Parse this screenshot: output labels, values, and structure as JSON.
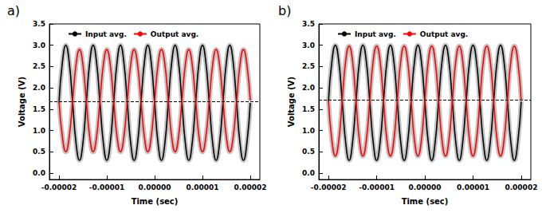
{
  "chart_data": [
    {
      "type": "line",
      "title": "a)",
      "x_label": "Time (sec)",
      "y_label": "Voltage (V)",
      "legend": "top",
      "grid": false,
      "reference_line": 1.68,
      "xlim": [
        -2.2e-05,
        2.2e-05
      ],
      "xticks": [
        -2e-05,
        -1e-05,
        {
          "value": 0,
          "label": "0.00000"
        },
        1e-05,
        2e-05
      ],
      "ylim": [
        -0.15,
        3.5
      ],
      "yticks": [
        {
          "value": 0,
          "label": "0.0"
        },
        0.5,
        {
          "value": 1,
          "label": "1.0"
        },
        1.5,
        {
          "value": 2,
          "label": "2.0"
        },
        2.5,
        {
          "value": 3,
          "label": "3.0"
        },
        3.5
      ],
      "x": [
        -2e-05,
        -1.9286e-05,
        -1.8571e-05,
        -1.7857e-05,
        -1.7143e-05,
        -1.6429e-05,
        -1.5714e-05,
        -1.5e-05,
        -1.4286e-05,
        -1.3571e-05,
        -1.2857e-05,
        -1.2143e-05,
        -1.1429e-05,
        -1.0714e-05,
        -1e-05,
        -9.286e-06,
        -8.571e-06,
        -7.857e-06,
        -7.143e-06,
        -6.429e-06,
        -5.714e-06,
        -5e-06,
        -4.286e-06,
        -3.571e-06,
        -2.857e-06,
        -2.143e-06,
        -1.429e-06,
        -7.14e-07,
        0,
        7.14e-07,
        1.429e-06,
        2.143e-06,
        2.857e-06,
        3.571e-06,
        4.286e-06,
        5e-06,
        5.714e-06,
        6.429e-06,
        7.143e-06,
        7.857e-06,
        8.571e-06,
        9.286e-06,
        1e-05,
        1.0714e-05,
        1.1429e-05,
        1.2143e-05,
        1.2857e-05,
        1.3571e-05,
        1.4286e-05,
        1.5e-05,
        1.5714e-05,
        1.6429e-05,
        1.7143e-05,
        1.7857e-05,
        1.8571e-05,
        1.9286e-05,
        2e-05
      ],
      "series": [
        {
          "name": "Input avg.",
          "color": "#000000",
          "values": [
            1.65,
            2.6,
            3.0,
            2.6,
            1.65,
            0.7,
            0.3,
            0.7,
            1.65,
            2.6,
            3.0,
            2.6,
            1.65,
            0.7,
            0.3,
            0.7,
            1.65,
            2.6,
            3.0,
            2.6,
            1.65,
            0.7,
            0.3,
            0.7,
            1.65,
            2.6,
            3.0,
            2.6,
            1.65,
            0.7,
            0.3,
            0.7,
            1.65,
            2.6,
            3.0,
            2.6,
            1.65,
            0.7,
            0.3,
            0.7,
            1.65,
            2.6,
            3.0,
            2.6,
            1.65,
            0.7,
            0.3,
            0.7,
            1.65,
            2.6,
            3.0,
            2.6,
            1.65,
            0.7,
            0.3,
            0.7,
            1.65
          ]
        },
        {
          "name": "Output avg.",
          "color": "#ff0000",
          "values": [
            1.7,
            0.85,
            0.5,
            0.85,
            1.7,
            2.55,
            2.9,
            2.55,
            1.7,
            0.85,
            0.5,
            0.85,
            1.7,
            2.55,
            2.9,
            2.55,
            1.7,
            0.85,
            0.5,
            0.85,
            1.7,
            2.55,
            2.9,
            2.55,
            1.7,
            0.85,
            0.5,
            0.85,
            1.7,
            2.55,
            2.9,
            2.55,
            1.7,
            0.85,
            0.5,
            0.85,
            1.7,
            2.55,
            2.9,
            2.55,
            1.7,
            0.85,
            0.5,
            0.85,
            1.7,
            2.55,
            2.9,
            2.55,
            1.7,
            0.85,
            0.5,
            0.85,
            1.7,
            2.55,
            2.9,
            2.55,
            1.7
          ]
        }
      ]
    },
    {
      "type": "line",
      "title": "b)",
      "x_label": "Time (sec)",
      "y_label": "Voltage (V)",
      "legend": "top",
      "grid": false,
      "reference_line": 1.72,
      "xlim": [
        -2.2e-05,
        2.2e-05
      ],
      "xticks": [
        -2e-05,
        -1e-05,
        {
          "value": 0,
          "label": "0.00000"
        },
        1e-05,
        2e-05
      ],
      "ylim": [
        -0.15,
        3.5
      ],
      "yticks": [
        {
          "value": 0,
          "label": "0.0"
        },
        0.5,
        {
          "value": 1,
          "label": "1.0"
        },
        1.5,
        {
          "value": 2,
          "label": "2.0"
        },
        2.5,
        {
          "value": 3,
          "label": "3.0"
        },
        3.5
      ],
      "x": [
        -2e-05,
        -1.9286e-05,
        -1.8571e-05,
        -1.7857e-05,
        -1.7143e-05,
        -1.6429e-05,
        -1.5714e-05,
        -1.5e-05,
        -1.4286e-05,
        -1.3571e-05,
        -1.2857e-05,
        -1.2143e-05,
        -1.1429e-05,
        -1.0714e-05,
        -1e-05,
        -9.286e-06,
        -8.571e-06,
        -7.857e-06,
        -7.143e-06,
        -6.429e-06,
        -5.714e-06,
        -5e-06,
        -4.286e-06,
        -3.571e-06,
        -2.857e-06,
        -2.143e-06,
        -1.429e-06,
        -7.14e-07,
        0,
        7.14e-07,
        1.429e-06,
        2.143e-06,
        2.857e-06,
        3.571e-06,
        4.286e-06,
        5e-06,
        5.714e-06,
        6.429e-06,
        7.143e-06,
        7.857e-06,
        8.571e-06,
        9.286e-06,
        1e-05,
        1.0714e-05,
        1.1429e-05,
        1.2143e-05,
        1.2857e-05,
        1.3571e-05,
        1.4286e-05,
        1.5e-05,
        1.5714e-05,
        1.6429e-05,
        1.7143e-05,
        1.7857e-05,
        1.8571e-05,
        1.9286e-05,
        2e-05
      ],
      "series": [
        {
          "name": "Input avg.",
          "color": "#000000",
          "values": [
            1.68,
            2.62,
            3.0,
            2.62,
            1.68,
            0.72,
            0.3,
            0.72,
            1.68,
            2.62,
            3.0,
            2.62,
            1.68,
            0.72,
            0.3,
            0.72,
            1.68,
            2.62,
            3.0,
            2.62,
            1.68,
            0.72,
            0.3,
            0.72,
            1.68,
            2.62,
            3.0,
            2.62,
            1.68,
            0.72,
            0.3,
            0.72,
            1.68,
            2.62,
            3.0,
            2.62,
            1.68,
            0.72,
            0.3,
            0.72,
            1.68,
            2.62,
            3.0,
            2.62,
            1.68,
            0.72,
            0.3,
            0.72,
            1.68,
            2.62,
            3.0,
            2.62,
            1.68,
            0.72,
            0.3,
            0.72,
            1.68
          ]
        },
        {
          "name": "Output avg.",
          "color": "#ff0000",
          "values": [
            1.7,
            0.77,
            0.4,
            0.77,
            1.7,
            2.63,
            2.98,
            2.63,
            1.7,
            0.77,
            0.4,
            0.77,
            1.7,
            2.63,
            2.98,
            2.63,
            1.7,
            0.77,
            0.4,
            0.77,
            1.7,
            2.63,
            2.98,
            2.63,
            1.7,
            0.77,
            0.4,
            0.77,
            1.7,
            2.63,
            2.98,
            2.63,
            1.7,
            0.77,
            0.4,
            0.77,
            1.7,
            2.63,
            2.98,
            2.63,
            1.7,
            0.77,
            0.4,
            0.77,
            1.7,
            2.63,
            2.98,
            2.63,
            1.7,
            0.77,
            0.4,
            0.77,
            1.7,
            2.63,
            2.98,
            2.63,
            1.7
          ]
        }
      ]
    }
  ]
}
